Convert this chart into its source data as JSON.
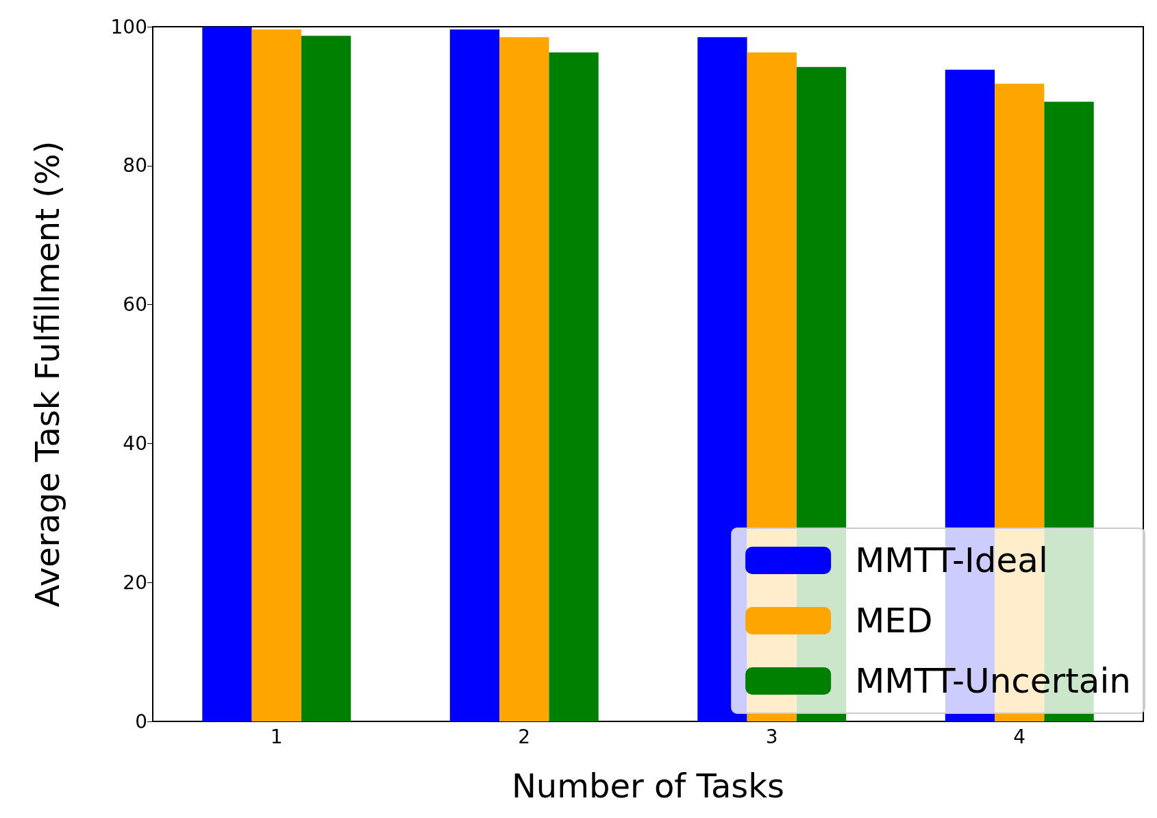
{
  "chart_data": {
    "type": "bar",
    "xlabel": "Number of Tasks",
    "ylabel": "Average Task Fulfillment (%)",
    "categories": [
      "1",
      "2",
      "3",
      "4"
    ],
    "series": [
      {
        "name": "MMTT-Ideal",
        "color": "#0000ff",
        "values": [
          100,
          99.6,
          98.5,
          93.8
        ]
      },
      {
        "name": "MED",
        "color": "#ffa500",
        "values": [
          99.6,
          98.5,
          96.3,
          91.8
        ]
      },
      {
        "name": "MMTT-Uncertain",
        "color": "#008000",
        "values": [
          98.7,
          96.3,
          94.2,
          89.2
        ]
      }
    ],
    "ylim": [
      0,
      100
    ],
    "yticks": [
      0,
      20,
      40,
      60,
      80,
      100
    ],
    "legend": "bottom right"
  }
}
